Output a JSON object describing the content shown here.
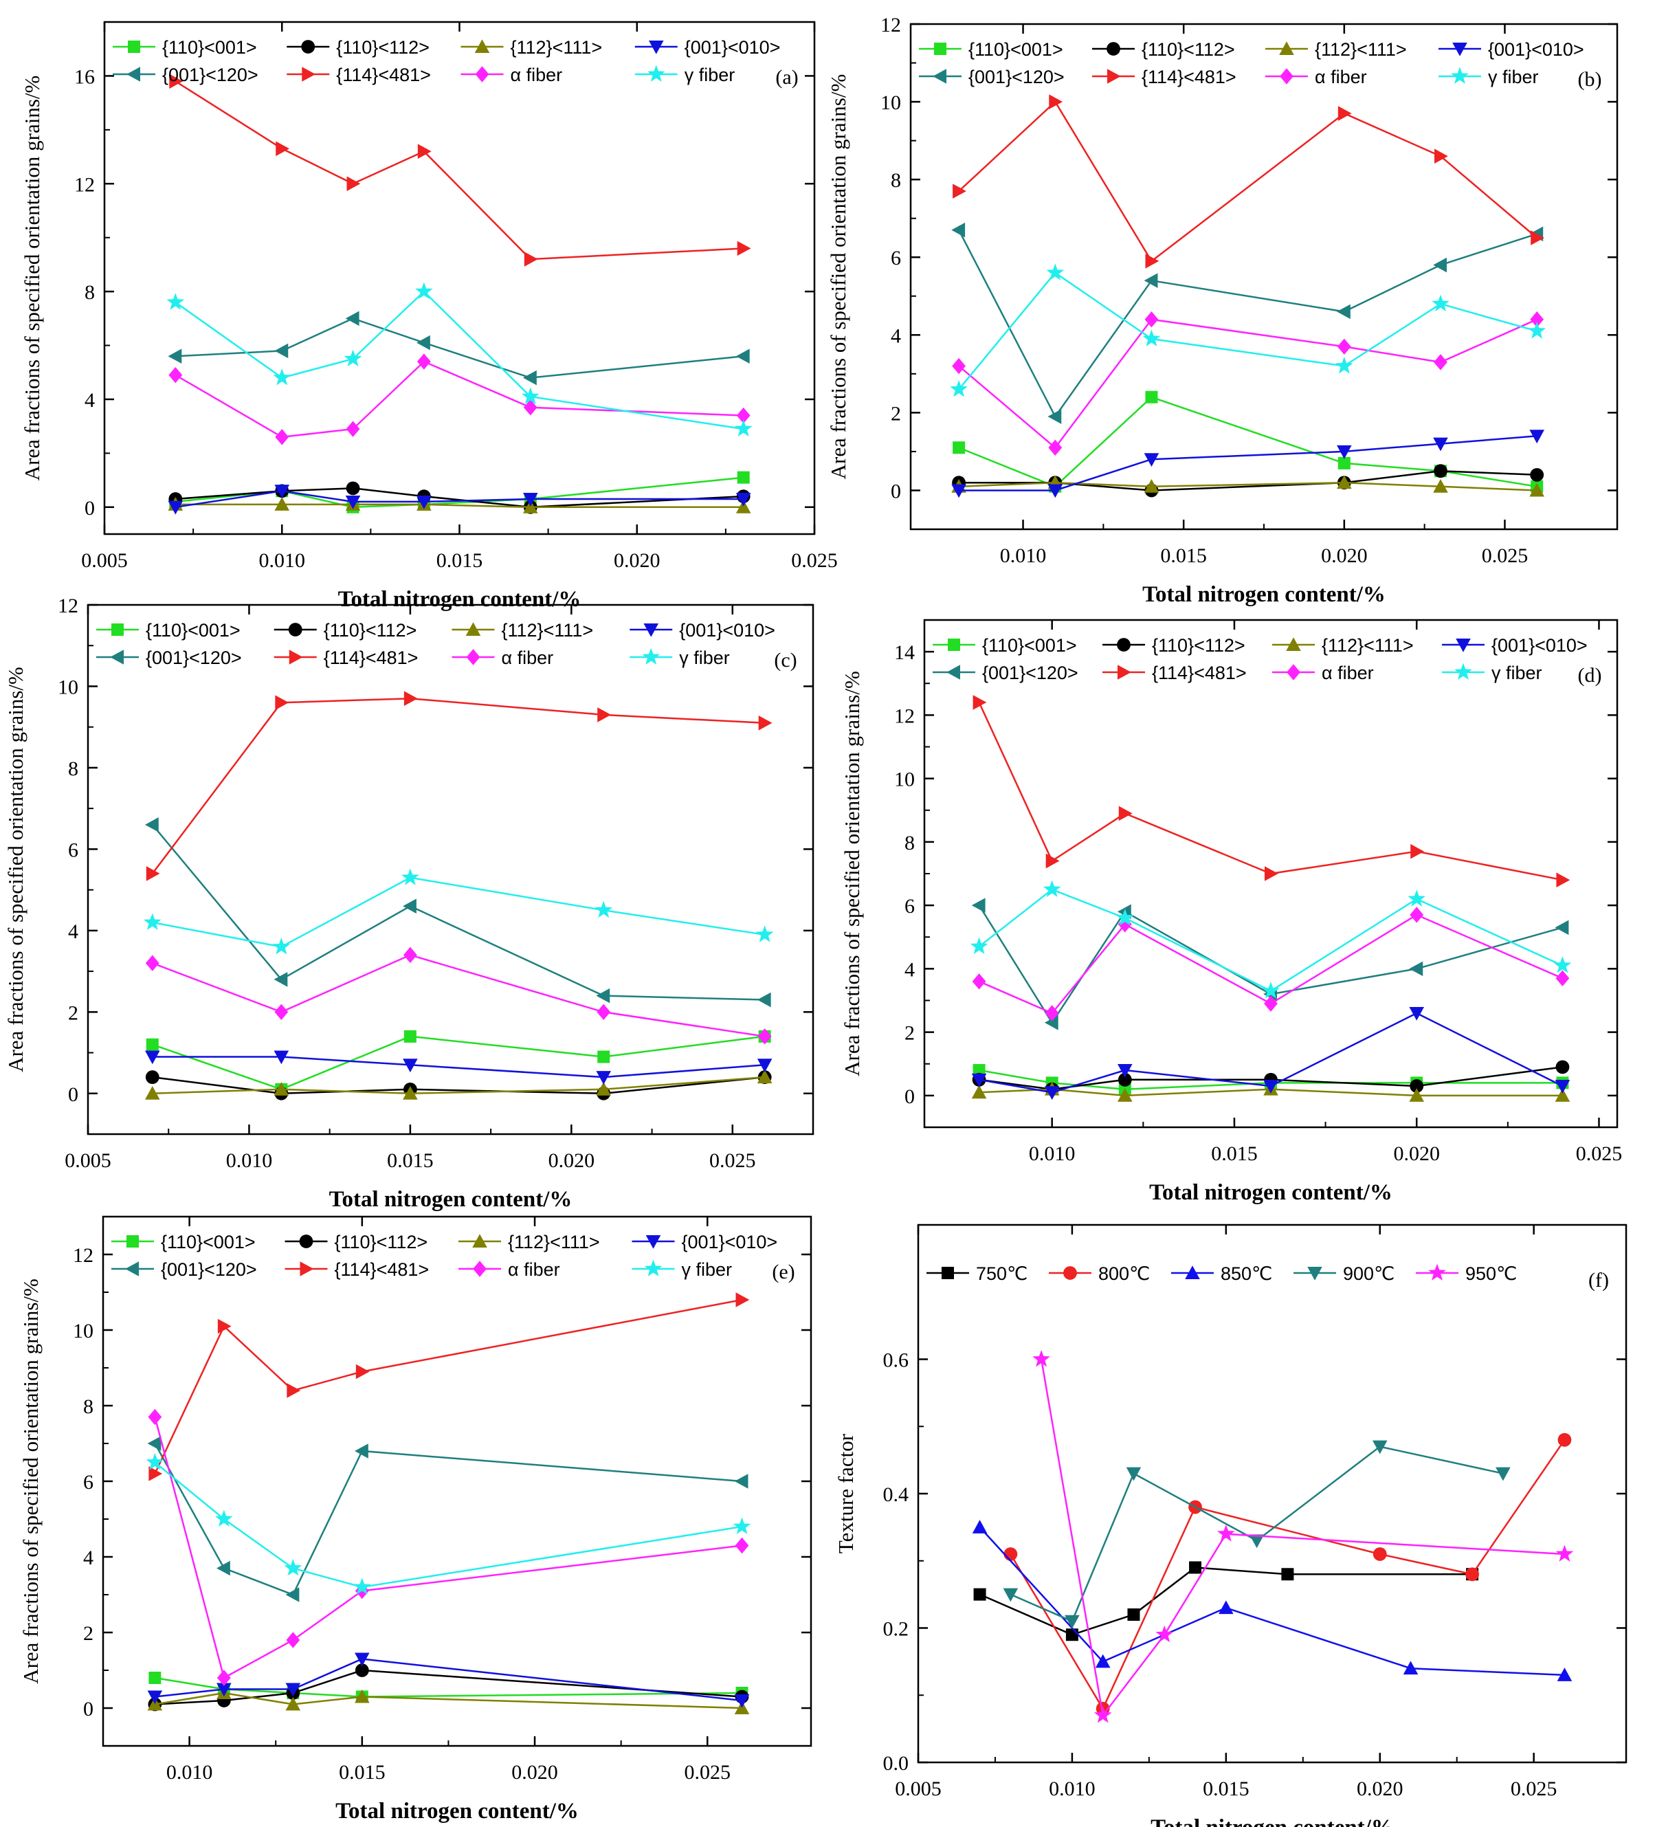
{
  "chart_data": [
    {
      "type": "line",
      "panel": "(a)",
      "xlabel": "Total nitrogen content/%",
      "ylabel": "Area fractions of specified orientation grains/%",
      "xlim": [
        0.005,
        0.025
      ],
      "ylim": [
        -1,
        18
      ],
      "xticks": [
        0.005,
        0.01,
        0.015,
        0.02,
        0.025
      ],
      "xtick_labels": [
        "0.005",
        "0.010",
        "0.015",
        "0.020",
        "0.025"
      ],
      "yticks": [
        0,
        4,
        8,
        12,
        16
      ],
      "ytick_labels": [
        "0",
        "4",
        "8",
        "12",
        "16"
      ],
      "x": [
        0.007,
        0.01,
        0.012,
        0.014,
        0.017,
        0.023
      ],
      "series": [
        {
          "name": "{110}<001>",
          "color": "#22dd22",
          "marker": "square",
          "values": [
            0.2,
            0.6,
            0.0,
            0.1,
            0.3,
            1.1
          ]
        },
        {
          "name": "{110}<112>",
          "color": "#000000",
          "marker": "circle",
          "values": [
            0.3,
            0.6,
            0.7,
            0.4,
            0.0,
            0.4
          ]
        },
        {
          "name": "{112}<111>",
          "color": "#808000",
          "marker": "tri-up",
          "values": [
            0.1,
            0.1,
            0.1,
            0.1,
            0.0,
            0.0
          ]
        },
        {
          "name": "{001}<010>",
          "color": "#1010dd",
          "marker": "tri-down",
          "values": [
            0.0,
            0.6,
            0.2,
            0.2,
            0.3,
            0.3
          ]
        },
        {
          "name": "{001}<120>",
          "color": "#1f7f7f",
          "marker": "tri-left",
          "values": [
            5.6,
            5.8,
            7.0,
            6.1,
            4.8,
            5.6
          ]
        },
        {
          "name": "{114}<481>",
          "color": "#ee2222",
          "marker": "tri-right",
          "values": [
            15.8,
            13.3,
            12.0,
            13.2,
            9.2,
            9.6
          ]
        },
        {
          "name": "α fiber",
          "color": "#ff22ff",
          "marker": "diamond",
          "values": [
            4.9,
            2.6,
            2.9,
            5.4,
            3.7,
            3.4
          ]
        },
        {
          "name": "γ fiber",
          "color": "#22eeee",
          "marker": "star",
          "values": [
            7.6,
            4.8,
            5.5,
            8.0,
            4.1,
            2.9
          ]
        }
      ]
    },
    {
      "type": "line",
      "panel": "(b)",
      "xlabel": "Total nitrogen content/%",
      "ylabel": "Area fractions of specified orientation grains/%",
      "xlim": [
        0.0065,
        0.0285
      ],
      "ylim": [
        -1,
        12
      ],
      "xticks": [
        0.01,
        0.015,
        0.02,
        0.025
      ],
      "xtick_labels": [
        "0.010",
        "0.015",
        "0.020",
        "0.025"
      ],
      "yticks": [
        0,
        2,
        4,
        6,
        8,
        10,
        12
      ],
      "ytick_labels": [
        "0",
        "2",
        "4",
        "6",
        "8",
        "10",
        "12"
      ],
      "x": [
        0.008,
        0.011,
        0.014,
        0.02,
        0.023,
        0.026
      ],
      "series": [
        {
          "name": "{110}<001>",
          "color": "#22dd22",
          "marker": "square",
          "values": [
            1.1,
            0.1,
            2.4,
            0.7,
            0.5,
            0.1
          ]
        },
        {
          "name": "{110}<112>",
          "color": "#000000",
          "marker": "circle",
          "values": [
            0.2,
            0.2,
            0.0,
            0.2,
            0.5,
            0.4
          ]
        },
        {
          "name": "{112}<111>",
          "color": "#808000",
          "marker": "tri-up",
          "values": [
            0.1,
            0.2,
            0.1,
            0.2,
            0.1,
            0.0
          ]
        },
        {
          "name": "{001}<010>",
          "color": "#1010dd",
          "marker": "tri-down",
          "values": [
            0.0,
            0.0,
            0.8,
            1.0,
            1.2,
            1.4
          ]
        },
        {
          "name": "{001}<120>",
          "color": "#1f7f7f",
          "marker": "tri-left",
          "values": [
            6.7,
            1.9,
            5.4,
            4.6,
            5.8,
            6.6
          ]
        },
        {
          "name": "{114}<481>",
          "color": "#ee2222",
          "marker": "tri-right",
          "values": [
            7.7,
            10.0,
            5.9,
            9.7,
            8.6,
            6.5
          ]
        },
        {
          "name": "α fiber",
          "color": "#ff22ff",
          "marker": "diamond",
          "values": [
            3.2,
            1.1,
            4.4,
            3.7,
            3.3,
            4.4
          ]
        },
        {
          "name": "γ fiber",
          "color": "#22eeee",
          "marker": "star",
          "values": [
            2.6,
            5.6,
            3.9,
            3.2,
            4.8,
            4.1
          ]
        }
      ]
    },
    {
      "type": "line",
      "panel": "(c)",
      "xlabel": "Total nitrogen content/%",
      "ylabel": "Area fractions of specified orientation grains/%",
      "xlim": [
        0.005,
        0.0275
      ],
      "ylim": [
        -1,
        12
      ],
      "xticks": [
        0.005,
        0.01,
        0.015,
        0.02,
        0.025
      ],
      "xtick_labels": [
        "0.005",
        "0.010",
        "0.015",
        "0.020",
        "0.025"
      ],
      "yticks": [
        0,
        2,
        4,
        6,
        8,
        10,
        12
      ],
      "ytick_labels": [
        "0",
        "2",
        "4",
        "6",
        "8",
        "10",
        "12"
      ],
      "x": [
        0.007,
        0.011,
        0.015,
        0.021,
        0.026
      ],
      "series": [
        {
          "name": "{110}<001>",
          "color": "#22dd22",
          "marker": "square",
          "values": [
            1.2,
            0.1,
            1.4,
            0.9,
            1.4
          ]
        },
        {
          "name": "{110}<112>",
          "color": "#000000",
          "marker": "circle",
          "values": [
            0.4,
            0.0,
            0.1,
            0.0,
            0.4
          ]
        },
        {
          "name": "{112}<111>",
          "color": "#808000",
          "marker": "tri-up",
          "values": [
            0.0,
            0.1,
            0.0,
            0.1,
            0.4
          ]
        },
        {
          "name": "{001}<010>",
          "color": "#1010dd",
          "marker": "tri-down",
          "values": [
            0.9,
            0.9,
            0.7,
            0.4,
            0.7
          ]
        },
        {
          "name": "{001}<120>",
          "color": "#1f7f7f",
          "marker": "tri-left",
          "values": [
            6.6,
            2.8,
            4.6,
            2.4,
            2.3
          ]
        },
        {
          "name": "{114}<481>",
          "color": "#ee2222",
          "marker": "tri-right",
          "values": [
            5.4,
            9.6,
            9.7,
            9.3,
            9.1
          ]
        },
        {
          "name": "α fiber",
          "color": "#ff22ff",
          "marker": "diamond",
          "values": [
            3.2,
            2.0,
            3.4,
            2.0,
            1.4
          ]
        },
        {
          "name": "γ fiber",
          "color": "#22eeee",
          "marker": "star",
          "values": [
            4.2,
            3.6,
            5.3,
            4.5,
            3.9
          ]
        }
      ]
    },
    {
      "type": "line",
      "panel": "(d)",
      "xlabel": "Total nitrogen content/%",
      "ylabel": "Area fractions of specified orientation grains/%",
      "xlim": [
        0.0065,
        0.0255
      ],
      "ylim": [
        -1,
        15
      ],
      "xticks": [
        0.01,
        0.015,
        0.02,
        0.025
      ],
      "xtick_labels": [
        "0.010",
        "0.015",
        "0.020",
        "0.025"
      ],
      "yticks": [
        0,
        2,
        4,
        6,
        8,
        10,
        12,
        14
      ],
      "ytick_labels": [
        "0",
        "2",
        "4",
        "6",
        "8",
        "10",
        "12",
        "14"
      ],
      "x": [
        0.008,
        0.01,
        0.012,
        0.016,
        0.02,
        0.024
      ],
      "series": [
        {
          "name": "{110}<001>",
          "color": "#22dd22",
          "marker": "square",
          "values": [
            0.8,
            0.4,
            0.2,
            0.4,
            0.4,
            0.4
          ]
        },
        {
          "name": "{110}<112>",
          "color": "#000000",
          "marker": "circle",
          "values": [
            0.5,
            0.2,
            0.5,
            0.5,
            0.3,
            0.9
          ]
        },
        {
          "name": "{112}<111>",
          "color": "#808000",
          "marker": "tri-up",
          "values": [
            0.1,
            0.2,
            0.0,
            0.2,
            0.0,
            0.0
          ]
        },
        {
          "name": "{001}<010>",
          "color": "#1010dd",
          "marker": "tri-down",
          "values": [
            0.5,
            0.1,
            0.8,
            0.3,
            2.6,
            0.3
          ]
        },
        {
          "name": "{001}<120>",
          "color": "#1f7f7f",
          "marker": "tri-left",
          "values": [
            6.0,
            2.3,
            5.8,
            3.2,
            4.0,
            5.3
          ]
        },
        {
          "name": "{114}<481>",
          "color": "#ee2222",
          "marker": "tri-right",
          "values": [
            12.4,
            7.4,
            8.9,
            7.0,
            7.7,
            6.8
          ]
        },
        {
          "name": "α fiber",
          "color": "#ff22ff",
          "marker": "diamond",
          "values": [
            3.6,
            2.6,
            5.4,
            2.9,
            5.7,
            3.7
          ]
        },
        {
          "name": "γ fiber",
          "color": "#22eeee",
          "marker": "star",
          "values": [
            4.7,
            6.5,
            5.6,
            3.3,
            6.2,
            4.1
          ]
        }
      ]
    },
    {
      "type": "line",
      "panel": "(e)",
      "xlabel": "Total nitrogen content/%",
      "ylabel": "Area fractions of specified orientation grains/%",
      "xlim": [
        0.0075,
        0.028
      ],
      "ylim": [
        -1,
        13
      ],
      "xticks": [
        0.01,
        0.015,
        0.02,
        0.025
      ],
      "xtick_labels": [
        "0.010",
        "0.015",
        "0.020",
        "0.025"
      ],
      "yticks": [
        0,
        2,
        4,
        6,
        8,
        10,
        12
      ],
      "ytick_labels": [
        "0",
        "2",
        "4",
        "6",
        "8",
        "10",
        "12"
      ],
      "x": [
        0.009,
        0.011,
        0.013,
        0.015,
        0.026
      ],
      "series": [
        {
          "name": "{110}<001>",
          "color": "#22dd22",
          "marker": "square",
          "values": [
            0.8,
            0.5,
            0.4,
            0.3,
            0.4
          ]
        },
        {
          "name": "{110}<112>",
          "color": "#000000",
          "marker": "circle",
          "values": [
            0.1,
            0.2,
            0.4,
            1.0,
            0.3
          ]
        },
        {
          "name": "{112}<111>",
          "color": "#808000",
          "marker": "tri-up",
          "values": [
            0.1,
            0.4,
            0.1,
            0.3,
            0.0
          ]
        },
        {
          "name": "{001}<010>",
          "color": "#1010dd",
          "marker": "tri-down",
          "values": [
            0.3,
            0.5,
            0.5,
            1.3,
            0.2
          ]
        },
        {
          "name": "{001}<120>",
          "color": "#1f7f7f",
          "marker": "tri-left",
          "values": [
            7.0,
            3.7,
            3.0,
            6.8,
            6.0
          ]
        },
        {
          "name": "{114}<481>",
          "color": "#ee2222",
          "marker": "tri-right",
          "values": [
            6.2,
            10.1,
            8.4,
            8.9,
            10.8
          ]
        },
        {
          "name": "α fiber",
          "color": "#ff22ff",
          "marker": "diamond",
          "values": [
            7.7,
            0.8,
            1.8,
            3.1,
            4.3
          ]
        },
        {
          "name": "γ fiber",
          "color": "#22eeee",
          "marker": "star",
          "values": [
            6.5,
            5.0,
            3.7,
            3.2,
            4.8
          ]
        }
      ]
    },
    {
      "type": "line",
      "panel": "(f)",
      "xlabel": "Total nitrogen content/%",
      "ylabel": "Texture factor",
      "xlim": [
        0.005,
        0.028
      ],
      "ylim": [
        0.0,
        0.8
      ],
      "xticks": [
        0.005,
        0.01,
        0.015,
        0.02,
        0.025
      ],
      "xtick_labels": [
        "0.005",
        "0.010",
        "0.015",
        "0.020",
        "0.025"
      ],
      "yticks": [
        0.0,
        0.2,
        0.4,
        0.6
      ],
      "ytick_labels": [
        "0.0",
        "0.2",
        "0.4",
        "0.6"
      ],
      "series": [
        {
          "name": "750℃",
          "color": "#000000",
          "marker": "square",
          "x": [
            0.007,
            0.01,
            0.012,
            0.014,
            0.017,
            0.023
          ],
          "values": [
            0.25,
            0.19,
            0.22,
            0.29,
            0.28,
            0.28
          ]
        },
        {
          "name": "800℃",
          "color": "#ee2222",
          "marker": "circle",
          "x": [
            0.008,
            0.011,
            0.014,
            0.02,
            0.023,
            0.026
          ],
          "values": [
            0.31,
            0.08,
            0.38,
            0.31,
            0.28,
            0.48
          ]
        },
        {
          "name": "850℃",
          "color": "#1010ee",
          "marker": "tri-up",
          "x": [
            0.007,
            0.011,
            0.015,
            0.021,
            0.026
          ],
          "values": [
            0.35,
            0.15,
            0.23,
            0.14,
            0.13
          ]
        },
        {
          "name": "900℃",
          "color": "#1f7f7f",
          "marker": "tri-down",
          "x": [
            0.008,
            0.01,
            0.012,
            0.016,
            0.02,
            0.024
          ],
          "values": [
            0.25,
            0.21,
            0.43,
            0.33,
            0.47,
            0.43
          ]
        },
        {
          "name": "950℃",
          "color": "#ff22ff",
          "marker": "star",
          "x": [
            0.009,
            0.011,
            0.013,
            0.015,
            0.026
          ],
          "values": [
            0.6,
            0.07,
            0.19,
            0.34,
            0.31
          ]
        }
      ]
    }
  ]
}
